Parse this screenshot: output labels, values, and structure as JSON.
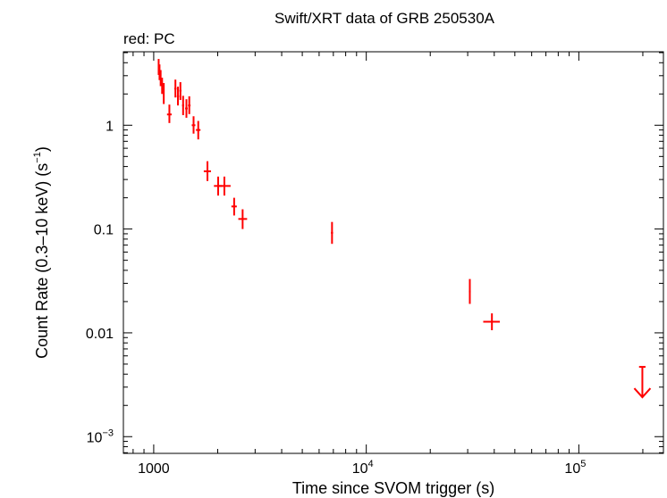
{
  "chart_data": {
    "type": "scatter",
    "title": "Swift/XRT data of GRB 250530A",
    "subtitle": "red: PC",
    "xlabel": "Time since SVOM trigger (s)",
    "ylabel": {
      "main": "Count Rate (0.3–10 keV) (s",
      "exp": "−1",
      "close": ")"
    },
    "xscale": "log",
    "yscale": "log",
    "xlim": [
      720,
      250000
    ],
    "ylim": [
      0.00069,
      5.1
    ],
    "x_ticks": [
      {
        "value": 1000,
        "base": "1000",
        "exp": ""
      },
      {
        "value": 10000,
        "base": "10",
        "exp": "4"
      },
      {
        "value": 100000,
        "base": "10",
        "exp": "5"
      }
    ],
    "y_ticks": [
      {
        "value": 1,
        "base": "1",
        "exp": ""
      },
      {
        "value": 0.1,
        "base": "0.1",
        "exp": ""
      },
      {
        "value": 0.01,
        "base": "0.01",
        "exp": ""
      },
      {
        "value": 0.001,
        "base": "10",
        "exp": "−3"
      }
    ],
    "colors": {
      "series": "#ff0000",
      "axes": "#000000"
    },
    "series": [
      {
        "name": "PC",
        "points": [
          {
            "x": 1055,
            "xlo": 1048,
            "xhi": 1062,
            "y": 3.65,
            "ylo": 3.05,
            "yhi": 4.35
          },
          {
            "x": 1065,
            "xlo": 1058,
            "xhi": 1072,
            "y": 3.25,
            "ylo": 2.72,
            "yhi": 3.85
          },
          {
            "x": 1078,
            "xlo": 1070,
            "xhi": 1086,
            "y": 2.85,
            "ylo": 2.38,
            "yhi": 3.4
          },
          {
            "x": 1095,
            "xlo": 1087,
            "xhi": 1103,
            "y": 2.4,
            "ylo": 2.0,
            "yhi": 2.87
          },
          {
            "x": 1115,
            "xlo": 1106,
            "xhi": 1124,
            "y": 2.08,
            "ylo": 1.6,
            "yhi": 2.55
          },
          {
            "x": 1185,
            "xlo": 1155,
            "xhi": 1215,
            "y": 1.27,
            "ylo": 1.05,
            "yhi": 1.58
          },
          {
            "x": 1265,
            "xlo": 1250,
            "xhi": 1280,
            "y": 2.25,
            "ylo": 1.85,
            "yhi": 2.75
          },
          {
            "x": 1300,
            "xlo": 1285,
            "xhi": 1315,
            "y": 1.9,
            "ylo": 1.55,
            "yhi": 2.35
          },
          {
            "x": 1335,
            "xlo": 1320,
            "xhi": 1350,
            "y": 2.15,
            "ylo": 1.75,
            "yhi": 2.6
          },
          {
            "x": 1375,
            "xlo": 1360,
            "xhi": 1390,
            "y": 1.55,
            "ylo": 1.25,
            "yhi": 1.92
          },
          {
            "x": 1425,
            "xlo": 1405,
            "xhi": 1445,
            "y": 1.45,
            "ylo": 1.18,
            "yhi": 1.78
          },
          {
            "x": 1470,
            "xlo": 1450,
            "xhi": 1490,
            "y": 1.55,
            "ylo": 1.28,
            "yhi": 1.9
          },
          {
            "x": 1540,
            "xlo": 1510,
            "xhi": 1570,
            "y": 1.0,
            "ylo": 0.83,
            "yhi": 1.22
          },
          {
            "x": 1620,
            "xlo": 1580,
            "xhi": 1660,
            "y": 0.9,
            "ylo": 0.73,
            "yhi": 1.1
          },
          {
            "x": 1790,
            "xlo": 1720,
            "xhi": 1860,
            "y": 0.36,
            "ylo": 0.29,
            "yhi": 0.45
          },
          {
            "x": 2010,
            "xlo": 1920,
            "xhi": 2100,
            "y": 0.26,
            "ylo": 0.21,
            "yhi": 0.32
          },
          {
            "x": 2150,
            "xlo": 2030,
            "xhi": 2300,
            "y": 0.26,
            "ylo": 0.21,
            "yhi": 0.32
          },
          {
            "x": 2390,
            "xlo": 2320,
            "xhi": 2460,
            "y": 0.165,
            "ylo": 0.135,
            "yhi": 0.2
          },
          {
            "x": 2620,
            "xlo": 2500,
            "xhi": 2750,
            "y": 0.125,
            "ylo": 0.1,
            "yhi": 0.155
          },
          {
            "x": 6900,
            "xlo": 6820,
            "xhi": 6980,
            "y": 0.092,
            "ylo": 0.072,
            "yhi": 0.117
          },
          {
            "x": 30700,
            "xlo": 30400,
            "xhi": 31000,
            "y": 0.025,
            "ylo": 0.019,
            "yhi": 0.033
          },
          {
            "x": 39000,
            "xlo": 35500,
            "xhi": 42500,
            "y": 0.0128,
            "ylo": 0.0106,
            "yhi": 0.0154
          }
        ],
        "upper_limits": [
          {
            "x": 199000,
            "xlo": 192000,
            "xhi": 206000,
            "y": 0.0047
          }
        ]
      }
    ]
  }
}
